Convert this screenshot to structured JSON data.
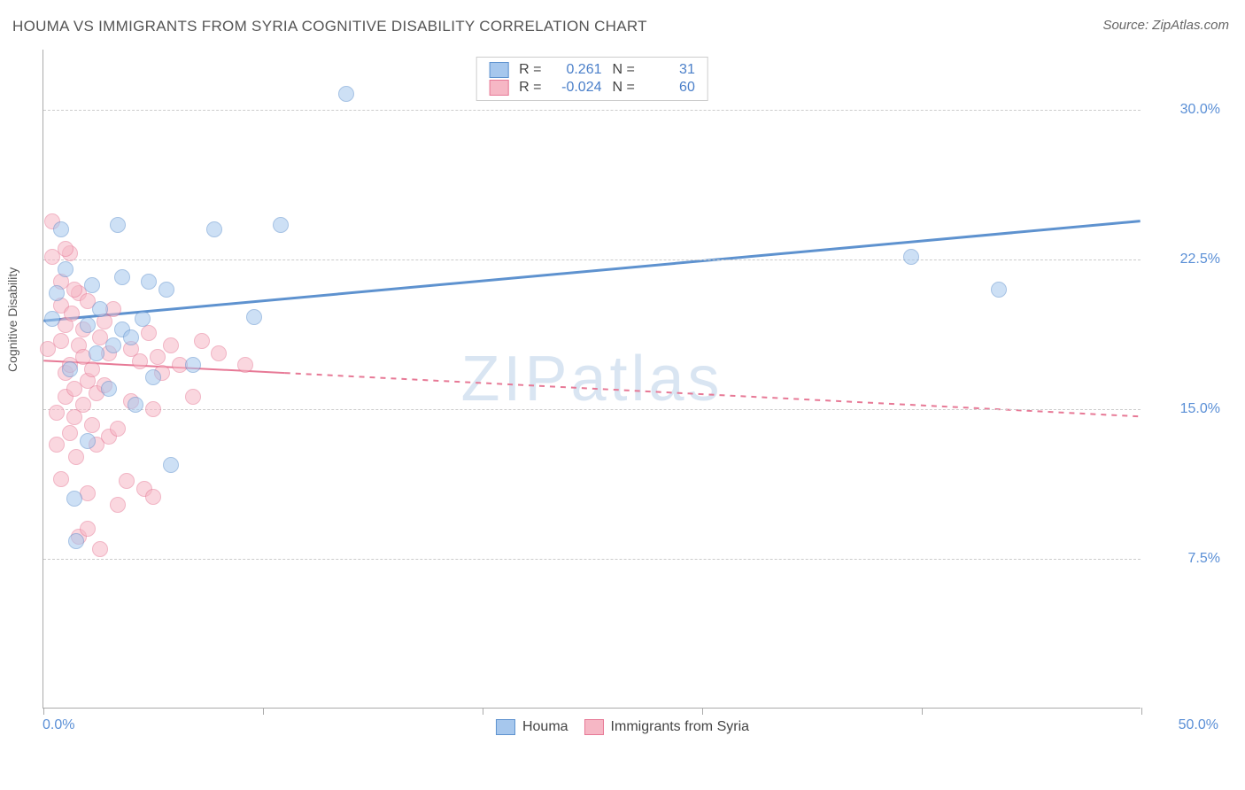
{
  "chart": {
    "type": "scatter",
    "title": "HOUMA VS IMMIGRANTS FROM SYRIA COGNITIVE DISABILITY CORRELATION CHART",
    "source": "Source: ZipAtlas.com",
    "watermark": "ZIPatlas",
    "y_axis_title": "Cognitive Disability",
    "x_axis_title": "",
    "background_color": "#ffffff",
    "grid_color": "#cccccc",
    "axis_color": "#aaaaaa",
    "tick_label_color": "#5a8fd6",
    "xlim": [
      0,
      50
    ],
    "ylim": [
      0,
      33
    ],
    "y_ticks": [
      7.5,
      15.0,
      22.5,
      30.0
    ],
    "y_tick_labels": [
      "7.5%",
      "15.0%",
      "22.5%",
      "30.0%"
    ],
    "x_tick_positions": [
      0,
      10,
      20,
      30,
      40,
      50
    ],
    "x_min_label": "0.0%",
    "x_max_label": "50.0%",
    "point_radius": 9,
    "point_opacity": 0.55,
    "series": {
      "houma": {
        "label": "Houma",
        "color_fill": "#a6c7ed",
        "color_stroke": "#5e92cf",
        "R": "0.261",
        "N": "31",
        "trend": {
          "x1": 0,
          "y1": 19.4,
          "x2": 50,
          "y2": 24.4,
          "width": 3,
          "solid_until_x": 50
        },
        "points": [
          [
            0.4,
            19.5
          ],
          [
            0.8,
            24.0
          ],
          [
            1.4,
            10.5
          ],
          [
            1.5,
            8.4
          ],
          [
            2.0,
            19.2
          ],
          [
            2.2,
            21.2
          ],
          [
            2.6,
            20.0
          ],
          [
            3.0,
            16.0
          ],
          [
            3.4,
            24.2
          ],
          [
            3.6,
            21.6
          ],
          [
            3.6,
            19.0
          ],
          [
            4.0,
            18.6
          ],
          [
            4.2,
            15.2
          ],
          [
            4.5,
            19.5
          ],
          [
            4.8,
            21.4
          ],
          [
            5.6,
            21.0
          ],
          [
            5.8,
            12.2
          ],
          [
            6.8,
            17.2
          ],
          [
            7.8,
            24.0
          ],
          [
            9.6,
            19.6
          ],
          [
            10.8,
            24.2
          ],
          [
            13.8,
            30.8
          ],
          [
            39.5,
            22.6
          ],
          [
            43.5,
            21.0
          ],
          [
            1.0,
            22.0
          ],
          [
            1.2,
            17.0
          ],
          [
            2.0,
            13.4
          ],
          [
            2.4,
            17.8
          ],
          [
            3.2,
            18.2
          ],
          [
            5.0,
            16.6
          ],
          [
            0.6,
            20.8
          ]
        ]
      },
      "syria": {
        "label": "Immigrants from Syria",
        "color_fill": "#f6b7c5",
        "color_stroke": "#e77996",
        "R": "-0.024",
        "N": "60",
        "trend": {
          "x1": 0,
          "y1": 17.4,
          "x2": 50,
          "y2": 14.6,
          "width": 2,
          "solid_until_x": 11
        },
        "points": [
          [
            0.2,
            18.0
          ],
          [
            0.4,
            24.4
          ],
          [
            0.4,
            22.6
          ],
          [
            0.6,
            13.2
          ],
          [
            0.6,
            14.8
          ],
          [
            0.8,
            11.5
          ],
          [
            0.8,
            20.2
          ],
          [
            0.8,
            21.4
          ],
          [
            0.8,
            18.4
          ],
          [
            1.0,
            19.2
          ],
          [
            1.0,
            15.6
          ],
          [
            1.0,
            16.8
          ],
          [
            1.2,
            13.8
          ],
          [
            1.2,
            17.2
          ],
          [
            1.2,
            22.8
          ],
          [
            1.3,
            19.8
          ],
          [
            1.4,
            16.0
          ],
          [
            1.4,
            14.6
          ],
          [
            1.5,
            12.6
          ],
          [
            1.6,
            18.2
          ],
          [
            1.6,
            8.6
          ],
          [
            1.6,
            20.8
          ],
          [
            1.8,
            15.2
          ],
          [
            1.8,
            17.6
          ],
          [
            1.8,
            19.0
          ],
          [
            2.0,
            10.8
          ],
          [
            2.0,
            9.0
          ],
          [
            2.0,
            20.4
          ],
          [
            2.0,
            16.4
          ],
          [
            2.2,
            14.2
          ],
          [
            2.2,
            17.0
          ],
          [
            2.4,
            15.8
          ],
          [
            2.4,
            13.2
          ],
          [
            2.6,
            8.0
          ],
          [
            2.6,
            18.6
          ],
          [
            2.8,
            19.4
          ],
          [
            2.8,
            16.2
          ],
          [
            3.0,
            13.6
          ],
          [
            3.0,
            17.8
          ],
          [
            3.2,
            20.0
          ],
          [
            3.4,
            14.0
          ],
          [
            3.4,
            10.2
          ],
          [
            3.8,
            11.4
          ],
          [
            4.0,
            18.0
          ],
          [
            4.0,
            15.4
          ],
          [
            4.4,
            17.4
          ],
          [
            4.6,
            11.0
          ],
          [
            4.8,
            18.8
          ],
          [
            5.0,
            15.0
          ],
          [
            5.0,
            10.6
          ],
          [
            5.2,
            17.6
          ],
          [
            5.4,
            16.8
          ],
          [
            5.8,
            18.2
          ],
          [
            6.2,
            17.2
          ],
          [
            6.8,
            15.6
          ],
          [
            7.2,
            18.4
          ],
          [
            8.0,
            17.8
          ],
          [
            9.2,
            17.2
          ],
          [
            1.0,
            23.0
          ],
          [
            1.4,
            21.0
          ]
        ]
      }
    },
    "legend_top": {
      "R_label": "R =",
      "N_label": "N ="
    }
  }
}
